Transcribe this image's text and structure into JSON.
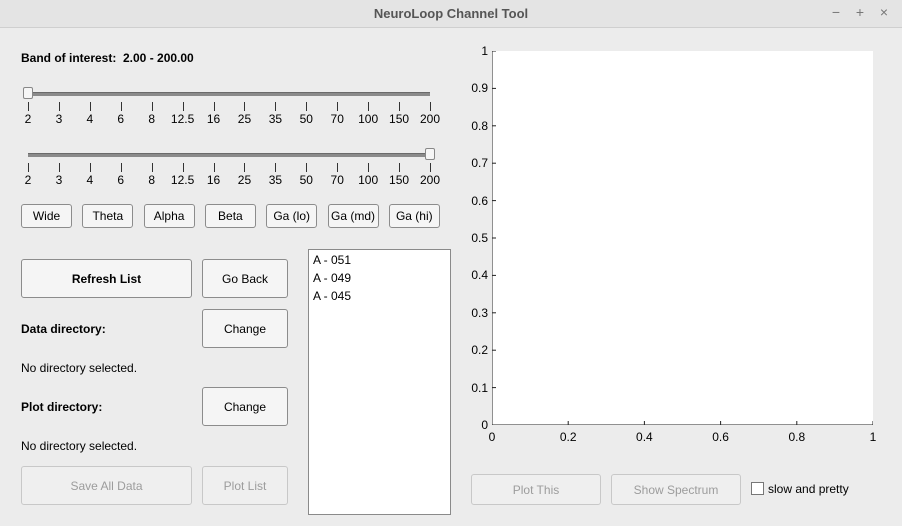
{
  "window": {
    "title": "NeuroLoop Channel Tool",
    "minimize": "−",
    "maximize": "+",
    "close": "×"
  },
  "band": {
    "label": "Band of interest:",
    "value": "2.00 - 200.00"
  },
  "slider_ticks": [
    "2",
    "3",
    "4",
    "6",
    "8",
    "12.5",
    "16",
    "25",
    "35",
    "50",
    "70",
    "100",
    "150",
    "200"
  ],
  "slider_low": {
    "value": 2
  },
  "slider_high": {
    "value": 200
  },
  "band_buttons": [
    "Wide",
    "Theta",
    "Alpha",
    "Beta",
    "Ga (lo)",
    "Ga (md)",
    "Ga (hi)"
  ],
  "actions": {
    "refresh": "Refresh List",
    "go_back": "Go Back",
    "change_data": "Change",
    "change_plot": "Change",
    "save_all": "Save All Data",
    "plot_list": "Plot List",
    "plot_this": "Plot This",
    "show_spectrum": "Show Spectrum"
  },
  "data_dir": {
    "label": "Data directory:",
    "value": "No directory selected."
  },
  "plot_dir": {
    "label": "Plot directory:",
    "value": "No directory selected."
  },
  "channel_list": [
    "A - 051",
    "A - 049",
    "A - 045"
  ],
  "checkbox": {
    "label": "slow and pretty",
    "checked": false
  },
  "chart_data": {
    "type": "line",
    "series": [],
    "xlim": [
      0,
      1
    ],
    "ylim": [
      0,
      1
    ],
    "x_ticks": [
      "0",
      "0.2",
      "0.4",
      "0.6",
      "0.8",
      "1"
    ],
    "y_ticks": [
      "0",
      "0.1",
      "0.2",
      "0.3",
      "0.4",
      "0.5",
      "0.6",
      "0.7",
      "0.8",
      "0.9",
      "1"
    ],
    "grid": false
  }
}
